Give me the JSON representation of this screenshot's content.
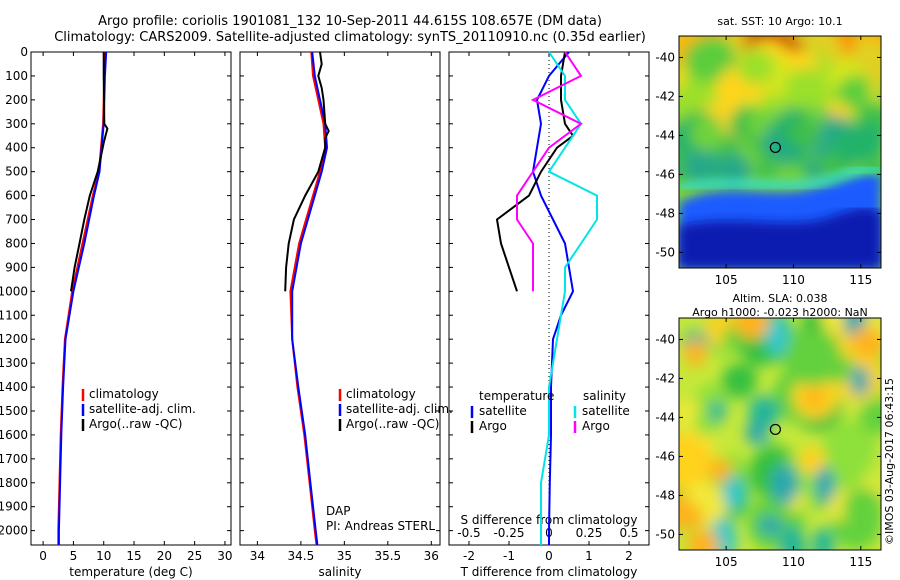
{
  "header": {
    "title_line1": "Argo profile: coriolis 1901081_132 10-Sep-2011 44.615S 108.657E (DM data)",
    "title_line2": "Climatology: CARS2009. Satellite-adjusted climatology: synTS_20110910.nc (0.35d earlier)"
  },
  "colors": {
    "climatology": "#ff0000",
    "satellite": "#0000ff",
    "argo": "#000000",
    "sat_salinity": "#00e5e5",
    "argo_salinity": "#ff00ff"
  },
  "depth_axis": {
    "ticks": [
      "0",
      "100",
      "200",
      "300",
      "400",
      "500",
      "600",
      "700",
      "800",
      "900",
      "1000",
      "1100",
      "1200",
      "1300",
      "1400",
      "1500",
      "1600",
      "1700",
      "1800",
      "1900",
      "2000"
    ],
    "ylim": [
      0,
      2060
    ]
  },
  "chart_data": [
    {
      "type": "line",
      "xlabel": "temperature (deg C)",
      "xlim": [
        -2,
        31
      ],
      "xticks": [
        "0",
        "5",
        "10",
        "15",
        "20",
        "25",
        "30"
      ],
      "legend": {
        "climatology": "climatology",
        "satellite": "satellite-adj. clim.",
        "argo": "Argo(..raw -QC)"
      },
      "series": [
        {
          "name": "climatology",
          "depth": [
            0,
            100,
            300,
            500,
            600,
            800,
            1000,
            1200,
            1400,
            1600,
            1800,
            2000,
            2060
          ],
          "values": [
            10.2,
            10.1,
            9.9,
            9.2,
            8.2,
            6.5,
            4.8,
            3.6,
            3.2,
            2.9,
            2.7,
            2.5,
            2.5
          ]
        },
        {
          "name": "satellite-adj. clim.",
          "depth": [
            0,
            100,
            300,
            500,
            600,
            800,
            1000,
            1200,
            1400,
            1600,
            1800,
            2000,
            2060
          ],
          "values": [
            10.4,
            10.2,
            10.0,
            9.3,
            8.4,
            6.8,
            5.0,
            3.7,
            3.3,
            3.0,
            2.8,
            2.6,
            2.6
          ]
        },
        {
          "name": "Argo(..raw -QC)",
          "depth": [
            0,
            100,
            300,
            320,
            350,
            380,
            500,
            600,
            700,
            800,
            900,
            1000
          ],
          "values": [
            10.0,
            10.0,
            10.1,
            10.6,
            10.3,
            10.0,
            9.0,
            7.7,
            6.8,
            6.0,
            5.2,
            4.6
          ]
        }
      ]
    },
    {
      "type": "line",
      "xlabel": "salinity",
      "xlim": [
        33.8,
        36.1
      ],
      "xticks": [
        "34",
        "34.5",
        "35",
        "35.5",
        "36"
      ],
      "legend": {
        "climatology": "climatology",
        "satellite": "satellite-adj. clim.",
        "argo": "Argo(..raw -QC)"
      },
      "annotation": {
        "line1": "DAP",
        "line2": "PI: Andreas STERL"
      },
      "series": [
        {
          "name": "climatology",
          "depth": [
            0,
            100,
            200,
            300,
            400,
            500,
            600,
            800,
            1000,
            1200,
            1400,
            1600,
            1800,
            2000,
            2060
          ],
          "values": [
            34.62,
            34.64,
            34.7,
            34.76,
            34.78,
            34.72,
            34.64,
            34.48,
            34.38,
            34.4,
            34.46,
            34.54,
            34.6,
            34.66,
            34.68
          ]
        },
        {
          "name": "satellite-adj. clim.",
          "depth": [
            0,
            100,
            200,
            300,
            400,
            500,
            600,
            800,
            1000,
            1200,
            1400,
            1600,
            1800,
            2000,
            2060
          ],
          "values": [
            34.63,
            34.66,
            34.72,
            34.78,
            34.8,
            34.74,
            34.66,
            34.5,
            34.4,
            34.4,
            34.47,
            34.55,
            34.61,
            34.67,
            34.69
          ]
        },
        {
          "name": "Argo(..raw -QC)",
          "depth": [
            0,
            50,
            100,
            150,
            200,
            300,
            330,
            360,
            400,
            500,
            600,
            700,
            800,
            900,
            1000
          ],
          "values": [
            34.72,
            34.74,
            34.7,
            34.74,
            34.76,
            34.78,
            34.82,
            34.78,
            34.78,
            34.7,
            34.55,
            34.42,
            34.36,
            34.33,
            34.32
          ]
        }
      ]
    },
    {
      "type": "line",
      "xlabel": "T difference from climatology",
      "xlabel_top": "S difference from climatology",
      "xlim": [
        -2.5,
        2.5
      ],
      "xticks": [
        "-2",
        "-1",
        "0",
        "1",
        "2"
      ],
      "xticks_top": [
        "-0.5",
        "-0.25",
        "0",
        "0.25",
        "0.5"
      ],
      "legend": {
        "temperature": "temperature",
        "salinity": "salinity",
        "satellite": "satellite",
        "argo": "Argo"
      },
      "series": [
        {
          "name": "satellite",
          "group": "temperature",
          "depth": [
            0,
            100,
            200,
            300,
            400,
            500,
            600,
            700,
            800,
            900,
            1000,
            1100,
            1200,
            1400,
            1600,
            1800,
            2000,
            2060
          ],
          "values": [
            0.5,
            0.0,
            -0.3,
            -0.2,
            -0.3,
            -0.4,
            -0.2,
            0.1,
            0.4,
            0.5,
            0.6,
            0.3,
            0.1,
            0.05,
            0.05,
            0.02,
            0.0,
            0.0
          ]
        },
        {
          "name": "Argo",
          "group": "temperature",
          "depth": [
            0,
            100,
            200,
            300,
            350,
            400,
            500,
            600,
            700,
            800,
            900,
            1000
          ],
          "values": [
            0.4,
            0.3,
            0.3,
            0.4,
            0.6,
            0.2,
            -0.2,
            -0.5,
            -1.3,
            -1.2,
            -1.0,
            -0.8
          ]
        },
        {
          "name": "satellite",
          "group": "salinity",
          "depth": [
            0,
            100,
            200,
            300,
            400,
            500,
            600,
            700,
            800,
            900,
            1000,
            1200,
            1400,
            1600,
            1800,
            2000,
            2060
          ],
          "values": [
            0.0,
            0.1,
            0.1,
            0.2,
            0.1,
            0.0,
            0.3,
            0.3,
            0.2,
            0.1,
            0.1,
            0.05,
            0.0,
            0.0,
            -0.05,
            -0.05,
            -0.05
          ]
        },
        {
          "name": "Argo",
          "group": "salinity",
          "depth": [
            0,
            100,
            200,
            300,
            400,
            500,
            600,
            700,
            800,
            900,
            1000
          ],
          "values": [
            0.1,
            0.2,
            -0.1,
            0.2,
            0.0,
            -0.1,
            -0.2,
            -0.2,
            -0.1,
            -0.1,
            -0.1
          ]
        }
      ]
    },
    {
      "type": "heatmap",
      "title": "sat. SST: 10 Argo: 10.1",
      "xlim": [
        101.5,
        116.5
      ],
      "ylim": [
        -50.8,
        -38.9
      ],
      "xticks": [
        "105",
        "110",
        "115"
      ],
      "yticks": [
        "-40",
        "-42",
        "-44",
        "-46",
        "-48",
        "-50"
      ],
      "marker": {
        "lon": 108.657,
        "lat": -44.615
      }
    },
    {
      "type": "heatmap",
      "title_line1": "Altim. SLA: 0.038",
      "title_line2": "Argo h1000: -0.023 h2000: NaN",
      "xlim": [
        101.5,
        116.5
      ],
      "ylim": [
        -50.8,
        -38.9
      ],
      "xticks": [
        "105",
        "110",
        "115"
      ],
      "yticks": [
        "-40",
        "-42",
        "-44",
        "-46",
        "-48",
        "-50"
      ],
      "marker": {
        "lon": 108.657,
        "lat": -44.615
      }
    }
  ],
  "footer": {
    "stamp": "©IMOS 03-Aug-2017 06:43:15"
  }
}
